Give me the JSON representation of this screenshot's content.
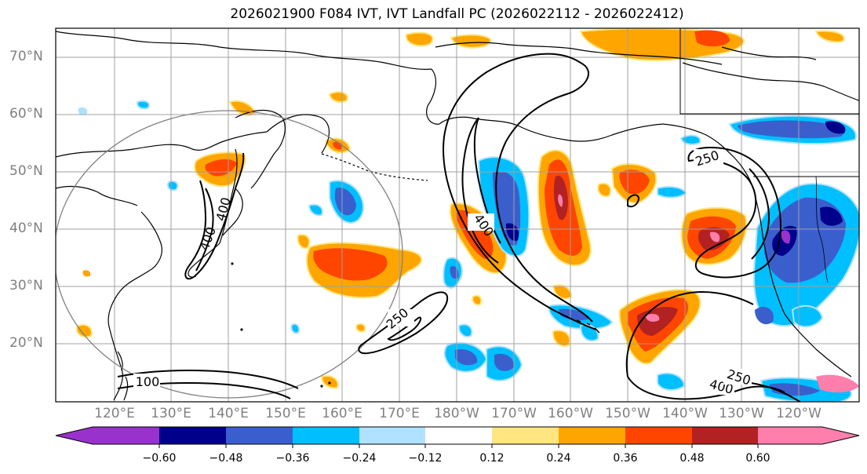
{
  "title": "2026021900 F084 IVT, IVT Landfall PC (2026022112 - 2026022412)",
  "lat_labels": [
    "70°N",
    "60°N",
    "50°N",
    "40°N",
    "30°N",
    "20°N"
  ],
  "lon_labels": [
    "120°E",
    "130°E",
    "140°E",
    "150°E",
    "160°E",
    "170°E",
    "180°W",
    "170°W",
    "160°W",
    "150°W",
    "140°W",
    "130°W",
    "120°W"
  ],
  "contour_labels": [
    "250",
    "400",
    "250",
    "400",
    "250",
    "400",
    "400",
    "100"
  ],
  "colorbar": {
    "tick_labels": [
      "−0.60",
      "−0.48",
      "−0.36",
      "−0.24",
      "−0.12",
      "0.12",
      "0.24",
      "0.36",
      "0.48",
      "0.60"
    ],
    "colors": [
      "#9932cc",
      "#00008b",
      "#3a5fcd",
      "#00bfff",
      "#b0e2ff",
      "#ffffff",
      "#ffe680",
      "#ffa500",
      "#ff4500",
      "#b22222",
      "#ff7fac"
    ]
  },
  "colors": {
    "deep_blue": "#00008b",
    "blue": "#3a5fcd",
    "sky": "#00bfff",
    "light_blue": "#b0e2ff",
    "yellow": "#ffe680",
    "orange": "#ffa500",
    "red_orange": "#ff4500",
    "dark_red": "#b22222",
    "pink": "#ff7fac",
    "purple": "#9932cc",
    "grid": "#a0a0a0",
    "circle": "#808080"
  }
}
